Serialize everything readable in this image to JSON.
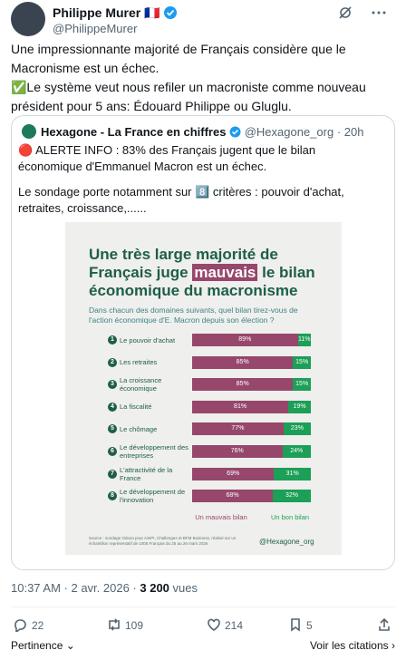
{
  "author": {
    "name": "Philippe Murer 🇫🇷",
    "handle": "@PhilippeMurer"
  },
  "tweet": {
    "lines": [
      "Une impressionnante majorité de Français considère que le Macronisme est un échec.",
      "✅Le système veut nous refiler un macroniste comme nouveau président pour 5 ans: Édouard Philippe ou Gluglu."
    ]
  },
  "quote": {
    "name": "Hexagone - La France en chiffres",
    "handle": "@Hexagone_org",
    "time": "· 20h",
    "lines": [
      "🔴 ALERTE INFO : 83% des Français jugent que le bilan économique d'Emmanuel Macron est un échec.",
      "Le sondage porte notamment sur 8️⃣ critères : pouvoir d'achat, retraites, croissance,......"
    ]
  },
  "infographic": {
    "title_line1": "Une très large majorité de",
    "title_line2a": "Français juge",
    "title_highlight": "mauvais",
    "title_line2b": "le bilan",
    "title_line3": "économique du macronisme",
    "subtitle": "Dans chacun des domaines suivants, quel bilan tirez-vous de l'action économique d'E. Macron depuis son élection ?",
    "numbers": [
      1,
      2,
      3,
      4,
      5,
      6,
      7,
      8
    ],
    "categories": [
      "Le pouvoir d'achat",
      "Les retraites",
      "La croissance économique",
      "La fiscalité",
      "Le chômage",
      "Le développement des entreprises",
      "L'attractivité de la France",
      "Le développement de l'innovation"
    ],
    "xlim": [
      0,
      100
    ],
    "series": [
      {
        "name": "Un mauvais bilan",
        "color": "#96476b",
        "values": [
          89,
          85,
          85,
          81,
          77,
          76,
          69,
          68
        ],
        "value_labels": [
          "89%",
          "85%",
          "85%",
          "81%",
          "77%",
          "76%",
          "69%",
          "68%"
        ]
      },
      {
        "name": "Un bon bilan",
        "color": "#1c9f57",
        "values": [
          11,
          15,
          15,
          19,
          23,
          24,
          31,
          32
        ],
        "value_labels": [
          "11%",
          "15%",
          "15%",
          "19%",
          "23%",
          "24%",
          "31%",
          "32%"
        ]
      }
    ],
    "source": "Source : sondage Odoxa pour ASIPI, Challenges et BFM Business, réalisé sur un échantillon représentatif de 1005 Français du 25 au 26 mars 2026",
    "brand": "@Hexagone_org"
  },
  "meta": {
    "time": "10:37 AM · 2 avr. 2026 ·",
    "views": "3 200",
    "views_label": "vues"
  },
  "actions": {
    "replies": 22,
    "reposts": 109,
    "likes": 214,
    "bookmarks": 5
  },
  "footer": {
    "sort": "Pertinence",
    "quotes": "Voir les citations"
  }
}
